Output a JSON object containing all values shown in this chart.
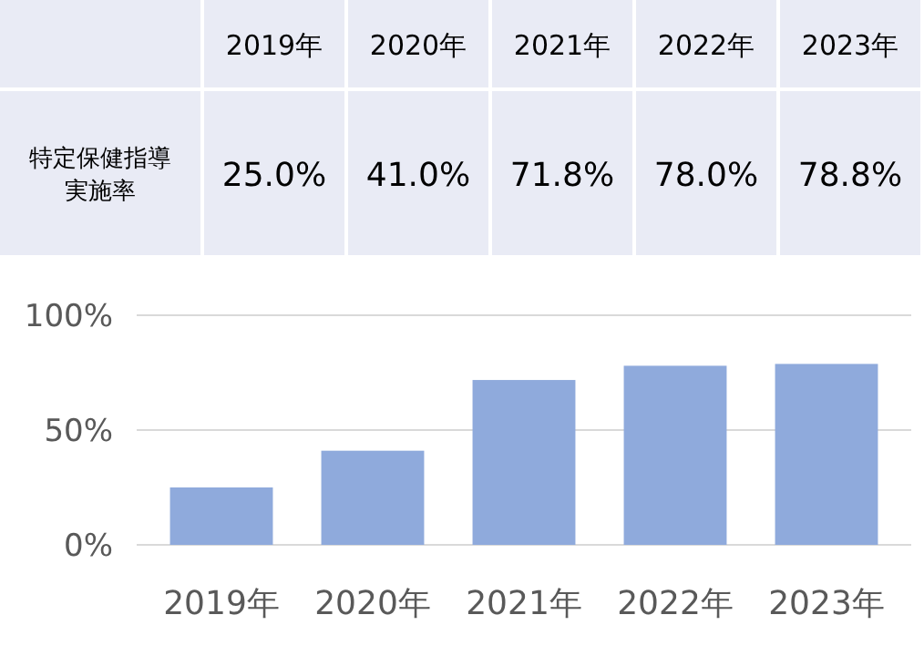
{
  "chart_data": {
    "type": "bar",
    "categories": [
      "2019年",
      "2020年",
      "2021年",
      "2022年",
      "2023年"
    ],
    "series": [
      {
        "color": "#8faadc",
        "values": [
          25.0,
          41.0,
          71.8,
          78.0,
          78.8
        ],
        "value_labels": [
          "25.0%",
          "41.0%",
          "71.8%",
          "78.0%",
          "78.8%"
        ]
      }
    ],
    "annotations": [
      "特定保健指導実施率"
    ],
    "ylim": [
      0,
      100
    ],
    "yticks": [
      {
        "value": 0,
        "label": "0%"
      },
      {
        "value": 50,
        "label": "50%"
      },
      {
        "value": 100,
        "label": "100%"
      }
    ],
    "grid": "y"
  }
}
